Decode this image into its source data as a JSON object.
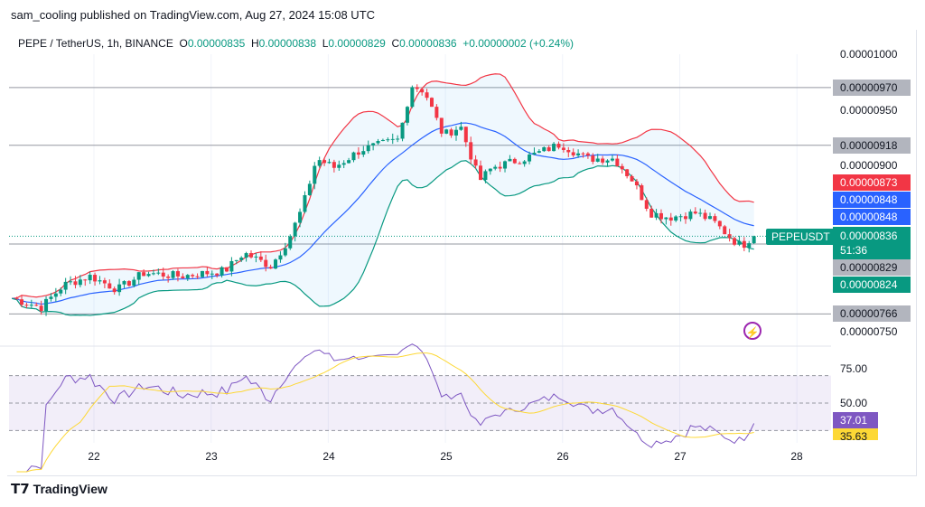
{
  "header": {
    "published": "sam_cooling published on TradingView.com, Aug 27, 2024 15:08 UTC"
  },
  "legend": {
    "symbol": "PEPE / TetherUS, 1h, BINANCE",
    "o_label": "O",
    "o": "0.00000835",
    "h_label": "H",
    "h": "0.00000838",
    "l_label": "L",
    "l": "0.00000829",
    "c_label": "C",
    "c": "0.00000836",
    "change": "+0.00000002 (+0.24%)"
  },
  "price_axis": {
    "ticks": [
      "0.00001000",
      "0.00000950",
      "0.00000900",
      "0.00000750"
    ],
    "hlines": [
      "0.00000970",
      "0.00000918",
      "0.00000829",
      "0.00000766"
    ],
    "bb_upper": "0.00000873",
    "bb_basis": "0.00000848",
    "bb_basis2": "0.00000848",
    "last_price": "0.00000836",
    "countdown": "51:36",
    "bb_lower": "0.00000824",
    "symbol_tag": "PEPEUSDT"
  },
  "rsi_axis": {
    "ticks": [
      "75.00",
      "50.00"
    ],
    "rsi": "37.01",
    "rsi_ma": "35.63"
  },
  "x_axis": {
    "labels": [
      "22",
      "23",
      "24",
      "25",
      "26",
      "27",
      "28"
    ]
  },
  "colors": {
    "up": "#089981",
    "down": "#f23645",
    "bb_upper": "#f23645",
    "bb_basis": "#2962ff",
    "bb_lower": "#089981",
    "rsi": "#7e57c2",
    "rsi_ma": "#fdd835"
  },
  "footer": {
    "brand": "TradingView"
  },
  "chart_data": {
    "type": "candlestick",
    "interval": "1h",
    "indicators": [
      "Bollinger Bands 20,2",
      "RSI 14 with SMA 14"
    ],
    "close_path": [
      [
        21.3,
        7.8e-06
      ],
      [
        21.55,
        7.72e-06
      ],
      [
        21.74,
        7.92e-06
      ],
      [
        21.97,
        8e-06
      ],
      [
        22.2,
        7.88e-06
      ],
      [
        22.43,
        8.03e-06
      ],
      [
        22.74,
        8e-06
      ],
      [
        23.12,
        8.05e-06
      ],
      [
        23.28,
        8.21e-06
      ],
      [
        23.51,
        8.09e-06
      ],
      [
        23.66,
        8.33e-06
      ],
      [
        23.78,
        8.62e-06
      ],
      [
        23.9,
        9.06e-06
      ],
      [
        24.05,
        8.98e-06
      ],
      [
        24.28,
        9.14e-06
      ],
      [
        24.6,
        9.23e-06
      ],
      [
        24.71,
        9.72e-06
      ],
      [
        24.82,
        9.67e-06
      ],
      [
        24.98,
        9.27e-06
      ],
      [
        25.13,
        9.35e-06
      ],
      [
        25.29,
        8.86e-06
      ],
      [
        25.4,
        8.98e-06
      ],
      [
        25.67,
        9.06e-06
      ],
      [
        25.98,
        9.19e-06
      ],
      [
        26.21,
        9.06e-06
      ],
      [
        26.44,
        9.06e-06
      ],
      [
        26.6,
        8.86e-06
      ],
      [
        26.75,
        8.57e-06
      ],
      [
        26.91,
        8.53e-06
      ],
      [
        27.14,
        8.57e-06
      ],
      [
        27.29,
        8.49e-06
      ],
      [
        27.45,
        8.33e-06
      ],
      [
        27.53,
        8.27e-06
      ],
      [
        27.62,
        8.36e-06
      ]
    ]
  }
}
